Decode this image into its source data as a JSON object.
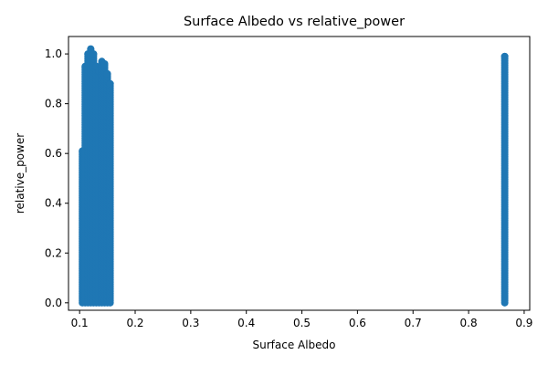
{
  "chart_data": {
    "type": "scatter",
    "title": "Surface Albedo vs relative_power",
    "xlabel": "Surface Albedo",
    "ylabel": "relative_power",
    "xlim": [
      0.08,
      0.91
    ],
    "ylim": [
      -0.03,
      1.07
    ],
    "xticks": [
      "0.1",
      "0.2",
      "0.3",
      "0.4",
      "0.5",
      "0.6",
      "0.7",
      "0.8",
      "0.9"
    ],
    "yticks": [
      "0.0",
      "0.2",
      "0.4",
      "0.6",
      "0.8",
      "1.0"
    ],
    "grid": false,
    "legend": "none",
    "color": "#1f77b4",
    "series": [
      {
        "clusters": [
          {
            "x": 0.105,
            "y_min": 0.0,
            "y_max": 0.61
          },
          {
            "x": 0.11,
            "y_min": 0.0,
            "y_max": 0.95
          },
          {
            "x": 0.115,
            "y_min": 0.0,
            "y_max": 1.0
          },
          {
            "x": 0.12,
            "y_min": 0.0,
            "y_max": 1.02
          },
          {
            "x": 0.125,
            "y_min": 0.0,
            "y_max": 1.0
          },
          {
            "x": 0.13,
            "y_min": 0.0,
            "y_max": 0.95
          },
          {
            "x": 0.135,
            "y_min": 0.0,
            "y_max": 0.93
          },
          {
            "x": 0.14,
            "y_min": 0.0,
            "y_max": 0.97
          },
          {
            "x": 0.145,
            "y_min": 0.0,
            "y_max": 0.96
          },
          {
            "x": 0.15,
            "y_min": 0.0,
            "y_max": 0.92
          },
          {
            "x": 0.155,
            "y_min": 0.0,
            "y_max": 0.88
          },
          {
            "x": 0.865,
            "y_min": 0.0,
            "y_max": 0.99
          }
        ]
      }
    ]
  }
}
